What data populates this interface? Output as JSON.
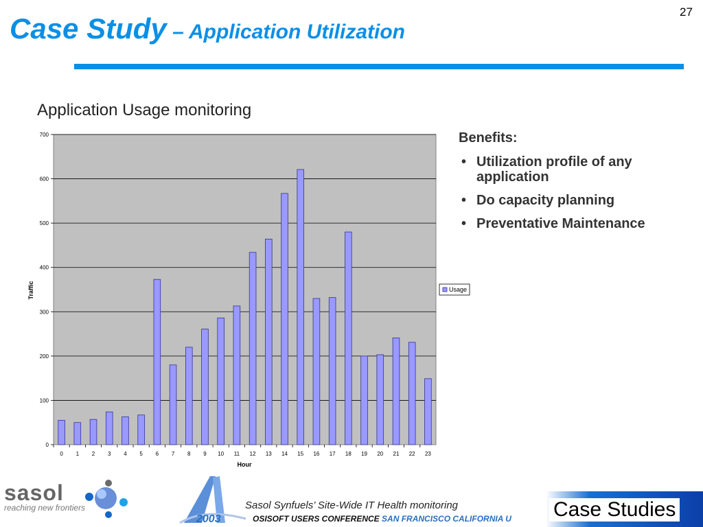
{
  "slide": {
    "number": "27",
    "title_main": "Case Study",
    "title_sub": " – Application Utilization",
    "section_heading": "Application Usage monitoring"
  },
  "benefits": {
    "heading": "Benefits:",
    "items": [
      "Utilization profile of any application",
      "Do capacity planning",
      "Preventative Maintenance"
    ]
  },
  "footer": {
    "brand": "sasol",
    "tagline": "reaching new frontiers",
    "caption": "Sasol Synfuels’ Site-Wide IT Health monitoring",
    "year": "2003",
    "conference_a": "OSISOFT USERS CONFERENCE ",
    "conference_b": "SAN FRANCISCO CALIFORNIA U",
    "section_label": "Case Studies"
  },
  "colors": {
    "title": "#0a8fe6",
    "bar_fill": "#9999ff",
    "bar_stroke": "#333399",
    "plot_bg": "#c0c0c0"
  },
  "chart_data": {
    "type": "bar",
    "categories": [
      "0",
      "1",
      "2",
      "3",
      "4",
      "5",
      "6",
      "7",
      "8",
      "9",
      "10",
      "11",
      "12",
      "13",
      "14",
      "15",
      "16",
      "17",
      "18",
      "19",
      "20",
      "21",
      "22",
      "23"
    ],
    "series": [
      {
        "name": "Usage",
        "values": [
          55,
          50,
          57,
          74,
          63,
          67,
          373,
          180,
          220,
          261,
          286,
          313,
          434,
          464,
          567,
          621,
          330,
          332,
          480,
          200,
          203,
          241,
          231,
          149
        ]
      }
    ],
    "xlabel": "Hour",
    "ylabel": "Traffic",
    "ylim": [
      0,
      700
    ],
    "yticks": [
      0,
      100,
      200,
      300,
      400,
      500,
      600,
      700
    ],
    "grid": true,
    "legend": "right"
  }
}
